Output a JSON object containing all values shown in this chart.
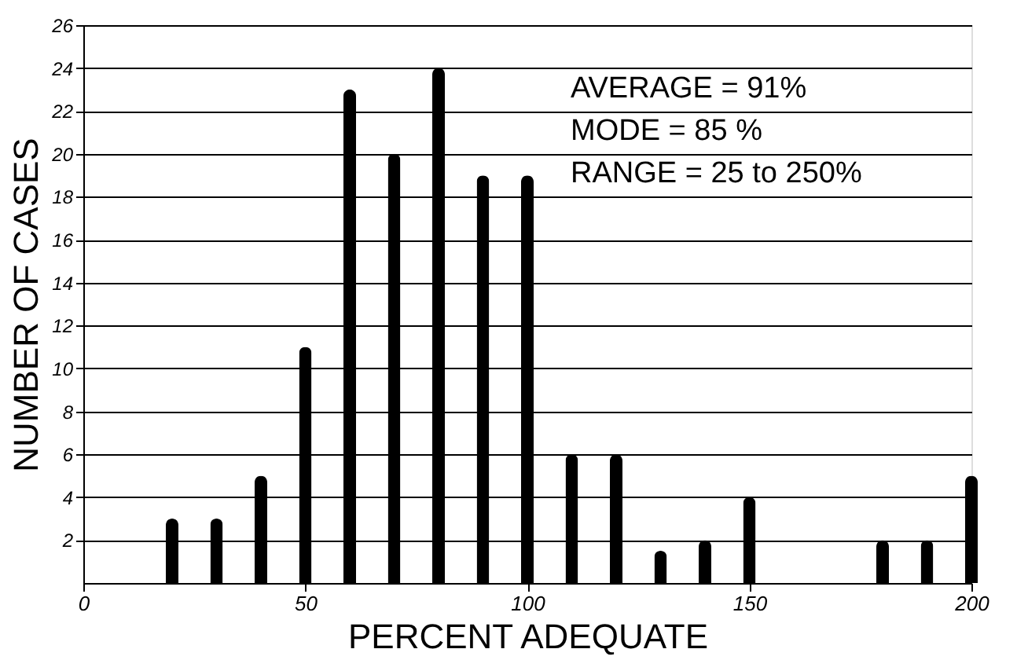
{
  "chart_data": {
    "type": "bar",
    "xlabel": "PERCENT ADEQUATE",
    "ylabel": "NUMBER OF CASES",
    "x": [
      20,
      30,
      40,
      50,
      60,
      70,
      80,
      90,
      100,
      110,
      120,
      130,
      140,
      150,
      180,
      190,
      200
    ],
    "values": [
      3,
      3,
      5,
      11,
      23,
      20,
      24,
      19,
      19,
      6,
      6,
      1.5,
      2,
      4,
      2,
      2,
      5
    ],
    "color": "#000000",
    "xlim": [
      0,
      200
    ],
    "xticks": [
      0,
      50,
      100,
      150,
      200
    ],
    "ylim": [
      0,
      26
    ],
    "yticks": [
      2,
      4,
      6,
      8,
      10,
      12,
      14,
      16,
      18,
      20,
      22,
      24,
      26
    ],
    "grid": "y",
    "annotations": [
      "AVERAGE = 91%",
      "MODE = 85 %",
      "RANGE = 25 to 250%"
    ]
  }
}
